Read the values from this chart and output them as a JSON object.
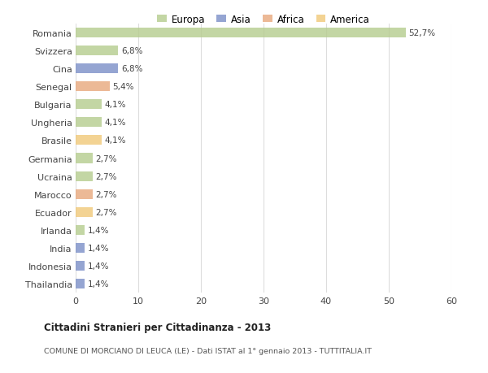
{
  "categories": [
    "Romania",
    "Svizzera",
    "Cina",
    "Senegal",
    "Bulgaria",
    "Ungheria",
    "Brasile",
    "Germania",
    "Ucraina",
    "Marocco",
    "Ecuador",
    "Irlanda",
    "India",
    "Indonesia",
    "Thailandia"
  ],
  "values": [
    52.7,
    6.8,
    6.8,
    5.4,
    4.1,
    4.1,
    4.1,
    2.7,
    2.7,
    2.7,
    2.7,
    1.4,
    1.4,
    1.4,
    1.4
  ],
  "labels": [
    "52,7%",
    "6,8%",
    "6,8%",
    "5,4%",
    "4,1%",
    "4,1%",
    "4,1%",
    "2,7%",
    "2,7%",
    "2,7%",
    "2,7%",
    "1,4%",
    "1,4%",
    "1,4%",
    "1,4%"
  ],
  "colors": [
    "#b5cc8e",
    "#b5cc8e",
    "#7b8fc7",
    "#e8a87c",
    "#b5cc8e",
    "#b5cc8e",
    "#f0c878",
    "#b5cc8e",
    "#b5cc8e",
    "#e8a87c",
    "#f0c878",
    "#b5cc8e",
    "#7b8fc7",
    "#7b8fc7",
    "#7b8fc7"
  ],
  "legend_labels": [
    "Europa",
    "Asia",
    "Africa",
    "America"
  ],
  "legend_colors": [
    "#b5cc8e",
    "#7b8fc7",
    "#e8a87c",
    "#f0c878"
  ],
  "xlim": [
    0,
    60
  ],
  "xticks": [
    0,
    10,
    20,
    30,
    40,
    50,
    60
  ],
  "title": "Cittadini Stranieri per Cittadinanza - 2013",
  "subtitle": "COMUNE DI MORCIANO DI LEUCA (LE) - Dati ISTAT al 1° gennaio 2013 - TUTTITALIA.IT",
  "bar_height": 0.55,
  "background_color": "#ffffff",
  "grid_color": "#dddddd"
}
